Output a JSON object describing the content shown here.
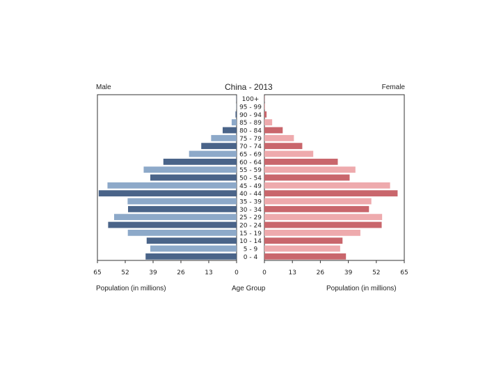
{
  "chart_data": {
    "type": "bar",
    "subtype": "population-pyramid",
    "title": "China - 2013",
    "left_label": "Male",
    "right_label": "Female",
    "xlabel_left": "Population (in millions)",
    "xlabel_center": "Age Group",
    "xlabel_right": "Population (in millions)",
    "xlim": [
      0,
      65
    ],
    "ticks": [
      0,
      13,
      26,
      39,
      52,
      65
    ],
    "tick_labels": [
      "0",
      "13",
      "26",
      "39",
      "52",
      "65"
    ],
    "categories": [
      "100+",
      "95 - 99",
      "90 - 94",
      "85 - 89",
      "80 - 84",
      "75 - 79",
      "70 - 74",
      "65 - 69",
      "60 - 64",
      "55 - 59",
      "50 - 54",
      "45 - 49",
      "40 - 44",
      "35 - 39",
      "30 - 34",
      "25 - 29",
      "20 - 24",
      "15 - 19",
      "10 - 14",
      "5 - 9",
      "0 - 4"
    ],
    "series": [
      {
        "name": "Male",
        "values": [
          0.1,
          0.1,
          0.5,
          2.3,
          6.5,
          11.9,
          16.5,
          22.2,
          34.2,
          43.4,
          40.3,
          60.3,
          64.4,
          50.9,
          50.7,
          57.2,
          60.0,
          50.8,
          42.0,
          40.3,
          42.5
        ]
      },
      {
        "name": "Female",
        "values": [
          0.1,
          0.3,
          1.0,
          3.6,
          8.5,
          13.7,
          17.6,
          22.7,
          34.1,
          42.3,
          39.6,
          58.4,
          61.9,
          49.7,
          48.6,
          54.7,
          54.5,
          44.6,
          36.3,
          35.2,
          37.9
        ]
      }
    ],
    "colors": {
      "male_dark": "#4a6489",
      "male_light": "#8da9c9",
      "female_dark": "#c9666c",
      "female_light": "#eeaaad",
      "frame": "#333333"
    }
  }
}
